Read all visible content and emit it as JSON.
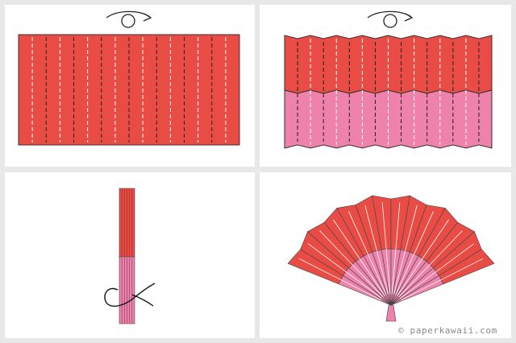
{
  "credit": {
    "copyright_symbol": "©",
    "site": "paperkawaii.com"
  },
  "colors": {
    "background": "#e8e8e8",
    "panel": "#ffffff",
    "red_paper": "#e84c44",
    "pink_paper": "#ee82aa",
    "stroke": "#333333",
    "fold_line": "#222222",
    "highlight": "#ffffff"
  },
  "icons": {
    "rotate": "rotate-arrow-icon"
  },
  "steps": [
    {
      "name": "pleat-rectangle"
    },
    {
      "name": "accordion-folded-paper"
    },
    {
      "name": "tie-bottom-with-string"
    },
    {
      "name": "finished-paper-fan"
    }
  ]
}
